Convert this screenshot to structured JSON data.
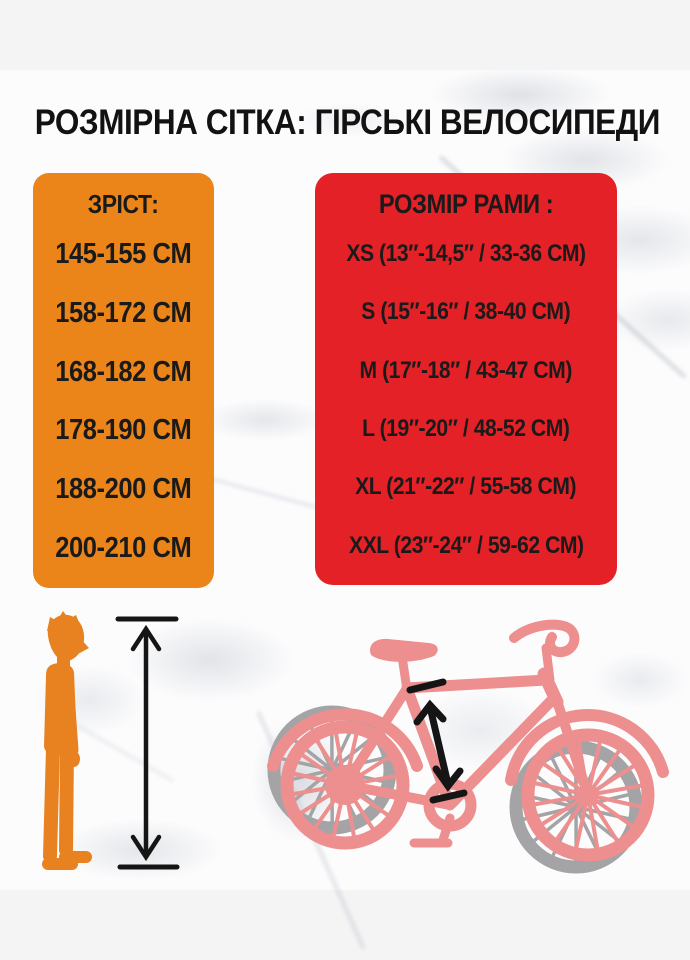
{
  "title": "РОЗМІРНА СІТКА: ГІРСЬКІ ВЕЛОСИПЕДИ",
  "columns": {
    "height": {
      "header": "ЗРІСТ:",
      "rows": [
        "145-155 CM",
        "158-172 CM",
        "168-182 CM",
        "178-190 CM",
        "188-200 CM",
        "200-210 CM"
      ]
    },
    "frame": {
      "header": "РОЗМІР РАМИ :",
      "rows": [
        "XS (13″-14,5″ / 33-36 CM)",
        "S (15″-16″ / 38-40 CM)",
        "M (17″-18″ / 43-47 CM)",
        "L (19″-20″ / 48-52 CM)",
        "XL (21″-22″ / 55-58 CM)",
        "XXL (23″-24″ / 59-62 CM)"
      ]
    }
  },
  "chart_data": {
    "type": "table",
    "title": "РОЗМІРНА СІТКА: ГІРСЬКІ ВЕЛОСИПЕДИ",
    "columns": [
      "ЗРІСТ:",
      "РОЗМІР РАМИ :"
    ],
    "rows": [
      [
        "145-155 CM",
        "XS (13″-14,5″ / 33-36 CM)"
      ],
      [
        "158-172 CM",
        "S (15″-16″ / 38-40 CM)"
      ],
      [
        "168-182 CM",
        "M (17″-18″ / 43-47 CM)"
      ],
      [
        "178-190 CM",
        "L (19″-20″ / 48-52 CM)"
      ],
      [
        "188-200 CM",
        "XL (21″-22″ / 55-58 CM)"
      ],
      [
        "200-210 CM",
        "XXL (23″-24″ / 59-62 CM)"
      ]
    ]
  },
  "icons": {
    "person": "person-height-silhouette",
    "height_arrow": "vertical-measure-arrow",
    "bike": "bicycle-silhouette",
    "frame_arrow": "frame-size-measure-arrow"
  },
  "colors": {
    "accent_orange": "#ec8519",
    "accent_red": "#e42126",
    "person_orange": "#e8811f",
    "bike_pink": "#ec8f8e",
    "wheel_gray": "#a4a4a6",
    "arrow_black": "#151515",
    "text_dark": "#1a1a1a"
  }
}
